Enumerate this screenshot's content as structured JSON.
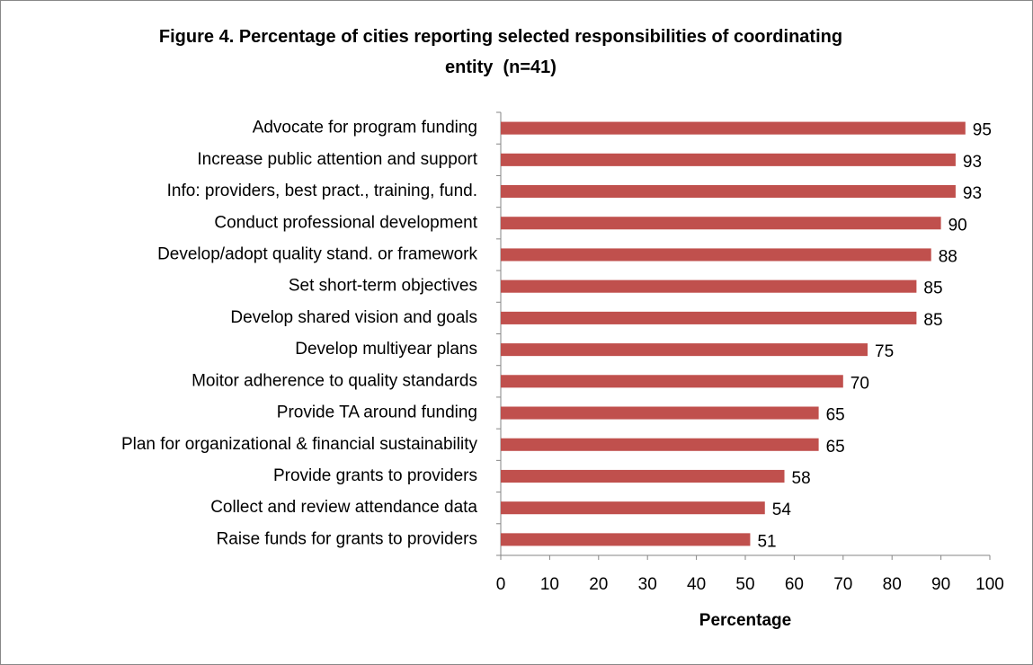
{
  "chart_data": {
    "type": "bar",
    "orientation": "horizontal",
    "title": "Figure 4. Percentage of cities reporting selected responsibilities of coordinating entity  (n=41)",
    "x_label": "Percentage",
    "categories": [
      "Advocate for program funding",
      "Increase public attention and support",
      "Info: providers, best pract., training, fund.",
      "Conduct professional development",
      "Develop/adopt quality stand. or framework",
      "Set short-term objectives",
      "Develop shared vision and goals",
      "Develop multiyear plans",
      "Moitor adherence to quality standards",
      "Provide TA around funding",
      "Plan for organizational & financial sustainability",
      "Provide grants to providers",
      "Collect and review attendance data",
      "Raise funds for grants to providers"
    ],
    "values": [
      95,
      93,
      93,
      90,
      88,
      85,
      85,
      75,
      70,
      65,
      65,
      58,
      54,
      51
    ],
    "color": "#c0504d",
    "xlim": [
      0,
      100
    ],
    "xticks": [
      0,
      10,
      20,
      30,
      40,
      50,
      60,
      70,
      80,
      90,
      100
    ],
    "grid": false
  }
}
